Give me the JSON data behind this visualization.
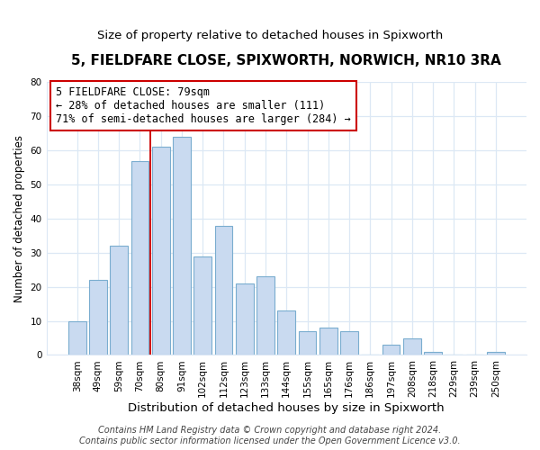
{
  "title": "5, FIELDFARE CLOSE, SPIXWORTH, NORWICH, NR10 3RA",
  "subtitle": "Size of property relative to detached houses in Spixworth",
  "xlabel": "Distribution of detached houses by size in Spixworth",
  "ylabel": "Number of detached properties",
  "footer_line1": "Contains HM Land Registry data © Crown copyright and database right 2024.",
  "footer_line2": "Contains public sector information licensed under the Open Government Licence v3.0.",
  "bar_labels": [
    "38sqm",
    "49sqm",
    "59sqm",
    "70sqm",
    "80sqm",
    "91sqm",
    "102sqm",
    "112sqm",
    "123sqm",
    "133sqm",
    "144sqm",
    "155sqm",
    "165sqm",
    "176sqm",
    "186sqm",
    "197sqm",
    "208sqm",
    "218sqm",
    "229sqm",
    "239sqm",
    "250sqm"
  ],
  "bar_values": [
    10,
    22,
    32,
    57,
    61,
    64,
    29,
    38,
    21,
    23,
    13,
    7,
    8,
    7,
    0,
    3,
    5,
    1,
    0,
    0,
    1
  ],
  "bar_color": "#c9daf0",
  "bar_edge_color": "#7aadcf",
  "annotation_line1": "5 FIELDFARE CLOSE: 79sqm",
  "annotation_line2": "← 28% of detached houses are smaller (111)",
  "annotation_line3": "71% of semi-detached houses are larger (284) →",
  "annotation_box_edgecolor": "#cc0000",
  "vline_color": "#cc0000",
  "ylim": [
    0,
    80
  ],
  "yticks": [
    0,
    10,
    20,
    30,
    40,
    50,
    60,
    70,
    80
  ],
  "background_color": "#ffffff",
  "grid_color": "#dce8f5",
  "title_fontsize": 11,
  "subtitle_fontsize": 9.5,
  "xlabel_fontsize": 9.5,
  "ylabel_fontsize": 8.5,
  "tick_fontsize": 7.5,
  "annotation_fontsize": 8.5,
  "footer_fontsize": 7
}
